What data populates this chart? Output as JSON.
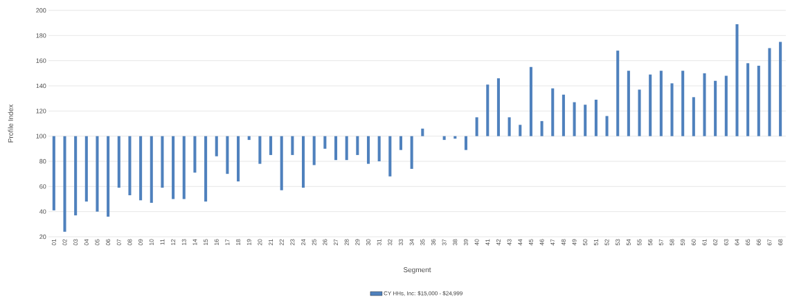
{
  "chart_data": {
    "type": "bar",
    "xlabel": "Segment",
    "ylabel": "Profile Index",
    "categories": [
      "01",
      "02",
      "03",
      "04",
      "05",
      "06",
      "07",
      "08",
      "09",
      "10",
      "11",
      "12",
      "13",
      "14",
      "15",
      "16",
      "17",
      "18",
      "19",
      "20",
      "21",
      "22",
      "23",
      "24",
      "25",
      "26",
      "27",
      "28",
      "29",
      "30",
      "31",
      "32",
      "33",
      "34",
      "35",
      "36",
      "37",
      "38",
      "39",
      "40",
      "41",
      "42",
      "43",
      "44",
      "45",
      "46",
      "47",
      "48",
      "49",
      "50",
      "51",
      "52",
      "53",
      "54",
      "55",
      "56",
      "57",
      "58",
      "59",
      "60",
      "61",
      "62",
      "63",
      "64",
      "65",
      "66",
      "67",
      "68"
    ],
    "series": [
      {
        "name": "CY HHs, Inc: $15,000 - $24,999",
        "color": "#4f81bd",
        "values": [
          -59,
          -76,
          -63,
          -52,
          -60,
          -64,
          -41,
          -47,
          -51,
          -53,
          -41,
          -50,
          -50,
          -29,
          -52,
          -16,
          -30,
          -36,
          -3,
          -22,
          -15,
          -43,
          -15,
          -41,
          -23,
          -10,
          -19,
          -19,
          -15,
          -22,
          -20,
          -32,
          -11,
          -26,
          6,
          null,
          -3,
          -2,
          -11,
          15,
          41,
          46,
          15,
          9,
          55,
          12,
          38,
          33,
          27,
          25,
          29,
          16,
          68,
          52,
          37,
          49,
          52,
          42,
          52,
          31,
          50,
          44,
          48,
          89,
          58,
          56,
          70,
          75
        ],
        "base": [
          100,
          100,
          100,
          100,
          100,
          100,
          100,
          100,
          100,
          100,
          100,
          100,
          100,
          100,
          100,
          100,
          100,
          100,
          100,
          100,
          100,
          100,
          100,
          100,
          100,
          100,
          100,
          100,
          100,
          100,
          100,
          100,
          100,
          100,
          100,
          null,
          100,
          100,
          100,
          100,
          100,
          100,
          100,
          100,
          100,
          100,
          100,
          100,
          100,
          100,
          100,
          100,
          100,
          100,
          100,
          100,
          100,
          100,
          100,
          100,
          100,
          100,
          100,
          100,
          100,
          100,
          100,
          100
        ]
      }
    ],
    "ylim": [
      20,
      200
    ],
    "yticks": [
      20,
      40,
      60,
      80,
      100,
      120,
      140,
      160,
      180,
      200
    ],
    "grid": "y",
    "legend": "bottom"
  }
}
